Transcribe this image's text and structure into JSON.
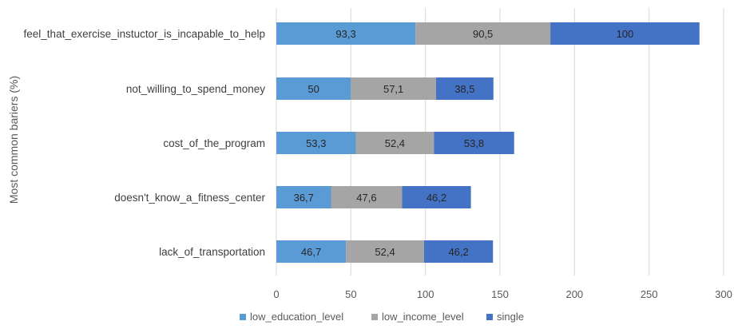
{
  "chart_data": {
    "type": "bar",
    "orientation": "horizontal",
    "stacked": true,
    "ylabel": "Most common bariers (%)",
    "categories": [
      "feel_that_exercise_instuctor_is_incapable_to_help",
      "not_willing_to_spend_money",
      "cost_of_the_program",
      "doesn't_know_a_fitness_center",
      "lack_of_transportation"
    ],
    "series": [
      {
        "name": "low_education_level",
        "color": "#5b9bd5",
        "values": [
          93.3,
          50,
          53.3,
          36.7,
          46.7
        ],
        "labels": [
          "93,3",
          "50",
          "53,3",
          "36,7",
          "46,7"
        ]
      },
      {
        "name": "low_income_level",
        "color": "#a5a5a5",
        "values": [
          90.5,
          57.1,
          52.4,
          47.6,
          52.4
        ],
        "labels": [
          "90,5",
          "57,1",
          "52,4",
          "47,6",
          "52,4"
        ]
      },
      {
        "name": "single",
        "color": "#4472c4",
        "values": [
          100,
          38.5,
          53.8,
          46.2,
          46.2
        ],
        "labels": [
          "100",
          "38,5",
          "53,8",
          "46,2",
          "46,2"
        ]
      }
    ],
    "xlim": [
      0,
      300
    ],
    "xticks": [
      0,
      50,
      100,
      150,
      200,
      250,
      300
    ],
    "grid": true,
    "legend_position": "bottom"
  }
}
